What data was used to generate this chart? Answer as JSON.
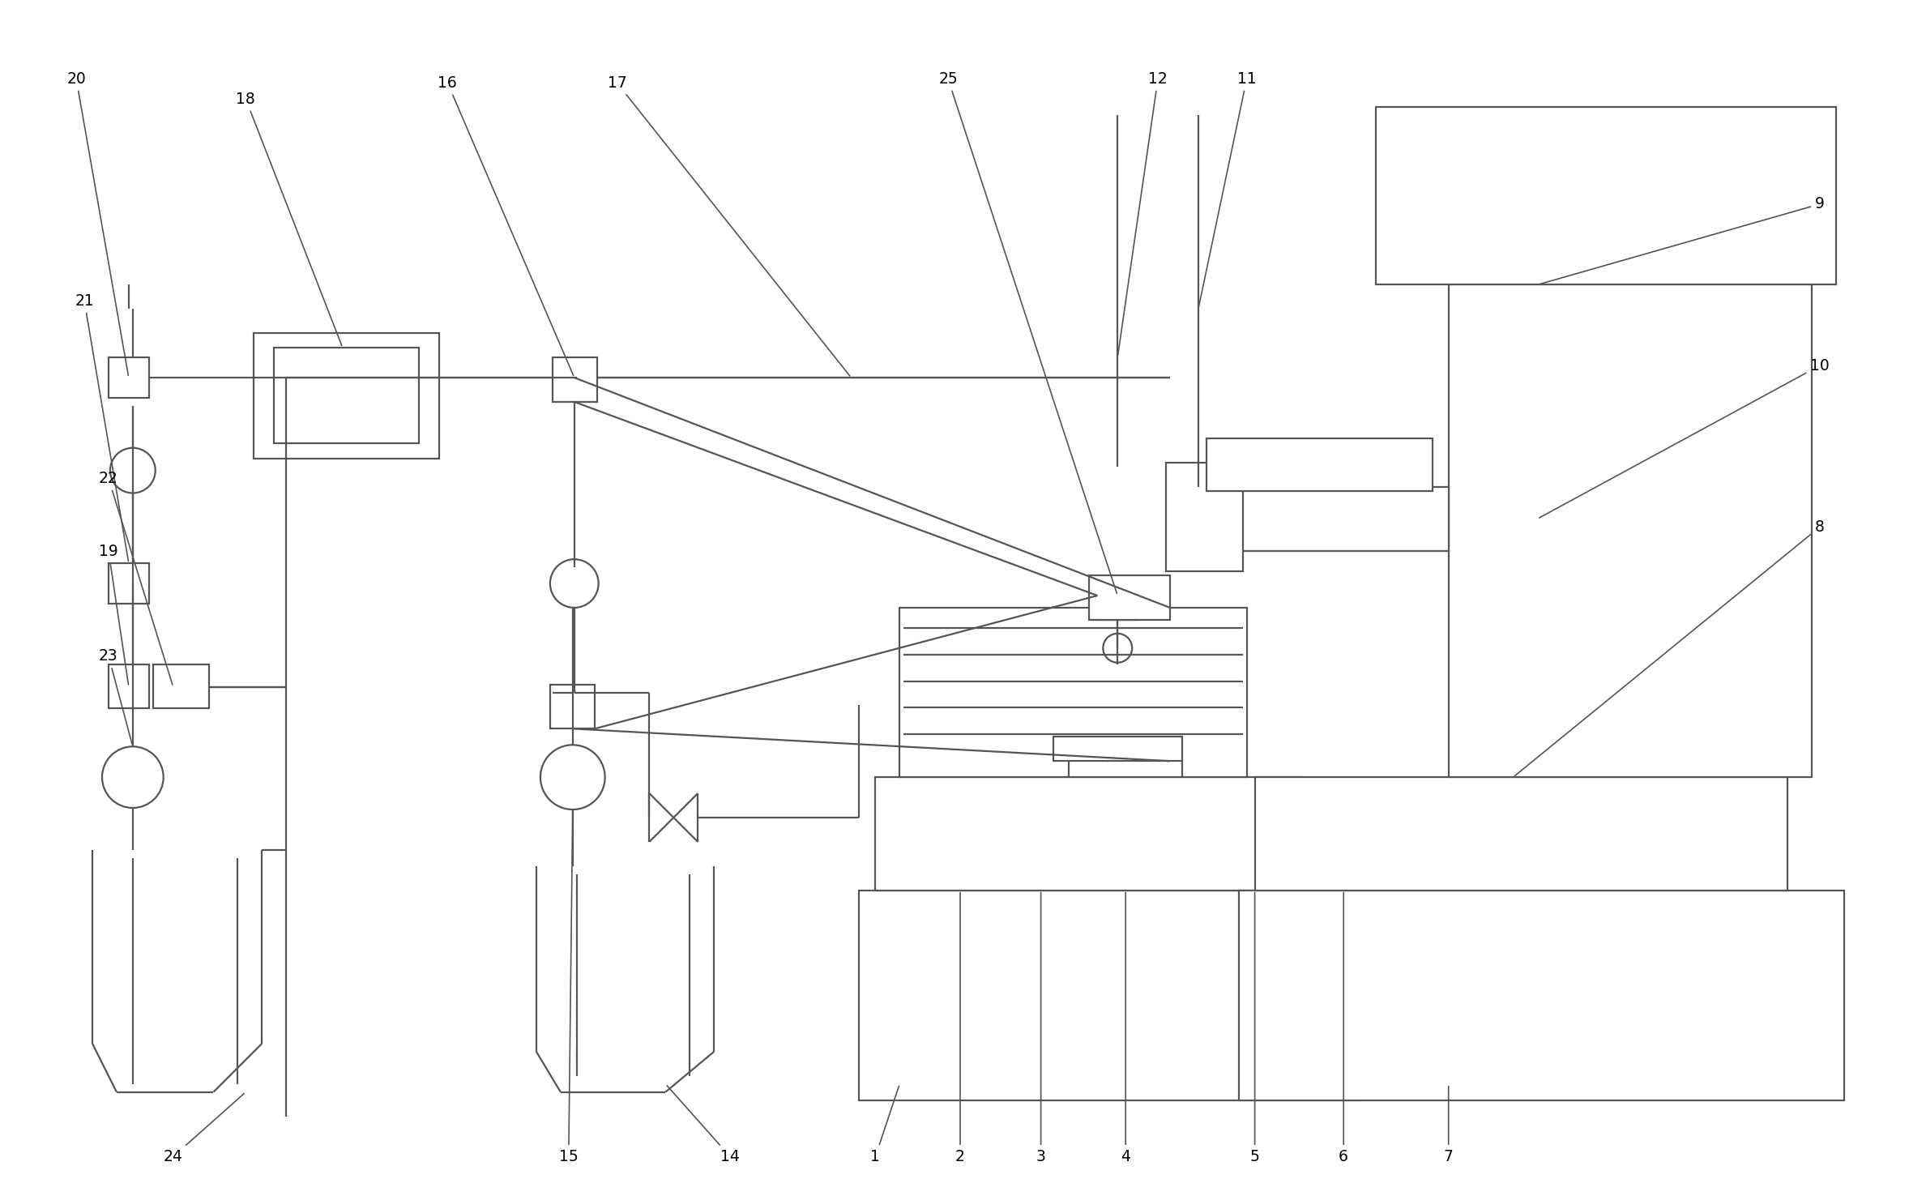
{
  "background": "#ffffff",
  "line_color": "#555555",
  "line_width": 1.6,
  "fig_width": 23.56,
  "fig_height": 14.76
}
